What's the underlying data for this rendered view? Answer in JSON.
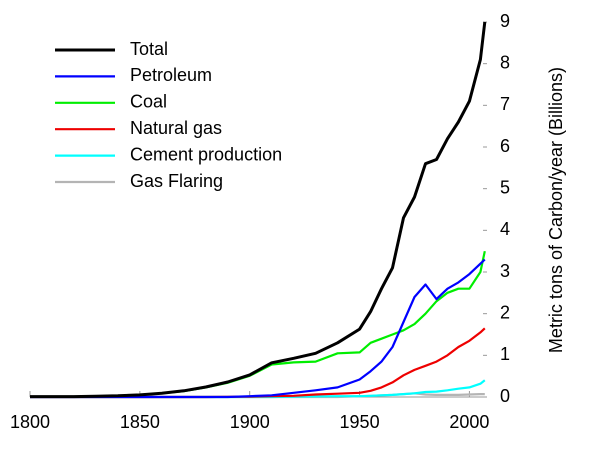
{
  "chart_data": {
    "type": "line",
    "ylabel": "Metric tons of Carbon/year (Billions)",
    "x": [
      1800,
      1810,
      1820,
      1830,
      1840,
      1850,
      1860,
      1870,
      1880,
      1890,
      1900,
      1910,
      1920,
      1930,
      1940,
      1950,
      1955,
      1960,
      1965,
      1970,
      1975,
      1980,
      1985,
      1990,
      1995,
      2000,
      2005,
      2007
    ],
    "series": [
      {
        "name": "Total",
        "color": "#000000",
        "values": [
          0.01,
          0.01,
          0.01,
          0.02,
          0.03,
          0.05,
          0.09,
          0.15,
          0.24,
          0.36,
          0.53,
          0.82,
          0.93,
          1.05,
          1.3,
          1.63,
          2.05,
          2.6,
          3.1,
          4.3,
          4.8,
          5.6,
          5.7,
          6.2,
          6.6,
          7.1,
          8.1,
          9.0
        ]
      },
      {
        "name": "Petroleum",
        "color": "#0000ff",
        "values": [
          0,
          0,
          0,
          0,
          0,
          0,
          0,
          0,
          0,
          0,
          0.02,
          0.04,
          0.1,
          0.16,
          0.23,
          0.42,
          0.62,
          0.85,
          1.2,
          1.8,
          2.4,
          2.7,
          2.35,
          2.6,
          2.75,
          2.95,
          3.2,
          3.3
        ]
      },
      {
        "name": "Coal",
        "color": "#00ee00",
        "values": [
          0.01,
          0.01,
          0.01,
          0.02,
          0.03,
          0.05,
          0.09,
          0.14,
          0.23,
          0.34,
          0.51,
          0.78,
          0.83,
          0.85,
          1.05,
          1.07,
          1.3,
          1.4,
          1.5,
          1.6,
          1.75,
          2.0,
          2.3,
          2.5,
          2.6,
          2.6,
          3.0,
          3.5
        ]
      },
      {
        "name": "Natural gas",
        "color": "#ee0000",
        "values": [
          0,
          0,
          0,
          0,
          0,
          0,
          0,
          0,
          0,
          0.005,
          0.01,
          0.02,
          0.03,
          0.06,
          0.08,
          0.1,
          0.15,
          0.23,
          0.35,
          0.52,
          0.65,
          0.75,
          0.85,
          1.0,
          1.2,
          1.35,
          1.55,
          1.65
        ]
      },
      {
        "name": "Cement production",
        "color": "#00ffff",
        "values": [
          0,
          0,
          0,
          0,
          0,
          0,
          0,
          0,
          0,
          0,
          0,
          0,
          0.01,
          0.015,
          0.02,
          0.02,
          0.03,
          0.04,
          0.05,
          0.07,
          0.09,
          0.12,
          0.13,
          0.16,
          0.2,
          0.23,
          0.32,
          0.4
        ]
      },
      {
        "name": "Gas Flaring",
        "color": "#b4b4b4",
        "values": [
          0,
          0,
          0,
          0,
          0,
          0,
          0,
          0,
          0,
          0,
          0,
          0,
          0,
          0,
          0,
          0.02,
          0.03,
          0.04,
          0.05,
          0.07,
          0.09,
          0.06,
          0.05,
          0.05,
          0.05,
          0.06,
          0.07,
          0.07
        ]
      }
    ],
    "xlim": [
      1800,
      2008
    ],
    "xticks": [
      1800,
      1850,
      1900,
      1950,
      2000
    ],
    "ylim": [
      0,
      9
    ],
    "yticks": [
      0,
      1,
      2,
      3,
      4,
      5,
      6,
      7,
      8,
      9
    ],
    "yaxis_side": "right",
    "legend": "upper left",
    "grid": false
  }
}
